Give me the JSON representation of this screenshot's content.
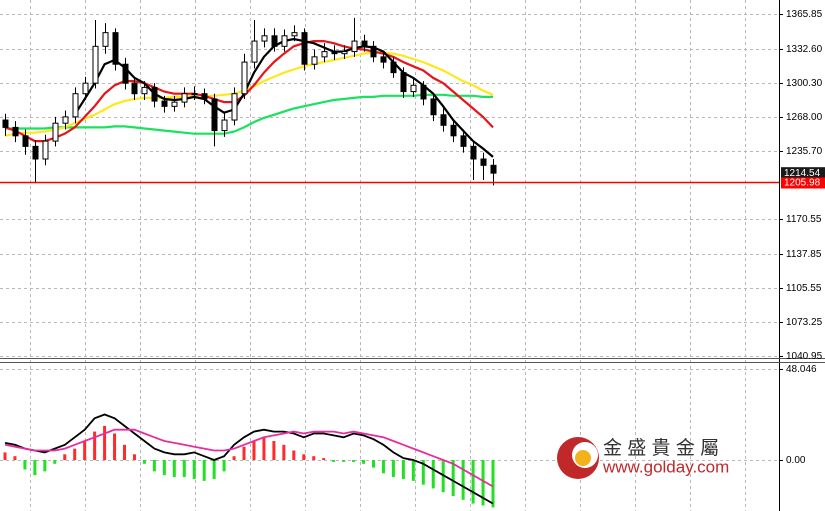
{
  "chart_data": [
    {
      "type": "candlestick",
      "open": [
        1265,
        1258,
        1250,
        1240,
        1228,
        1245,
        1262,
        1268,
        1290,
        1300,
        1335,
        1348,
        1318,
        1300,
        1290,
        1296,
        1283,
        1278,
        1282,
        1290,
        1290,
        1285,
        1255,
        1265,
        1290,
        1320,
        1340,
        1345,
        1335,
        1345,
        1348,
        1318,
        1325,
        1330,
        1328,
        1330,
        1340,
        1335,
        1325,
        1320,
        1310,
        1292,
        1298,
        1285,
        1270,
        1260,
        1250,
        1240,
        1228,
        1222
      ],
      "high": [
        1271,
        1264,
        1256,
        1246,
        1251,
        1268,
        1274,
        1296,
        1306,
        1360,
        1357,
        1352,
        1324,
        1306,
        1302,
        1300,
        1288,
        1288,
        1296,
        1297,
        1295,
        1290,
        1272,
        1296,
        1328,
        1360,
        1352,
        1352,
        1351,
        1355,
        1352,
        1332,
        1338,
        1336,
        1336,
        1362,
        1346,
        1340,
        1330,
        1325,
        1315,
        1304,
        1302,
        1290,
        1276,
        1265,
        1256,
        1245,
        1234,
        1228
      ],
      "low": [
        1250,
        1244,
        1232,
        1205,
        1222,
        1240,
        1256,
        1262,
        1284,
        1295,
        1328,
        1312,
        1294,
        1284,
        1284,
        1277,
        1272,
        1273,
        1277,
        1284,
        1280,
        1240,
        1249,
        1260,
        1285,
        1314,
        1334,
        1330,
        1330,
        1340,
        1312,
        1313,
        1320,
        1322,
        1323,
        1325,
        1330,
        1320,
        1314,
        1305,
        1286,
        1287,
        1279,
        1264,
        1254,
        1244,
        1234,
        1208,
        1208,
        1203
      ],
      "close": [
        1258,
        1250,
        1240,
        1228,
        1245,
        1262,
        1268,
        1290,
        1300,
        1335,
        1348,
        1318,
        1300,
        1290,
        1296,
        1283,
        1278,
        1282,
        1290,
        1290,
        1285,
        1255,
        1265,
        1290,
        1320,
        1340,
        1345,
        1335,
        1345,
        1348,
        1318,
        1325,
        1330,
        1328,
        1330,
        1340,
        1335,
        1325,
        1320,
        1310,
        1292,
        1298,
        1285,
        1270,
        1260,
        1250,
        1240,
        1228,
        1222,
        1214.54
      ],
      "up_color": "#ffffff",
      "down_color": "#000000",
      "series": [
        {
          "color": "#19e35e",
          "values": [
            1257,
            1257,
            1257,
            1257,
            1257,
            1258,
            1258,
            1258,
            1258,
            1258,
            1258,
            1259,
            1259,
            1258,
            1257,
            1256,
            1255,
            1254,
            1253,
            1252,
            1252,
            1252,
            1252,
            1254,
            1258,
            1263,
            1267,
            1270,
            1273,
            1276,
            1278,
            1280,
            1282,
            1284,
            1285,
            1286,
            1287,
            1287,
            1288,
            1288,
            1288,
            1288,
            1289,
            1289,
            1289,
            1288,
            1288,
            1288,
            1287,
            1287
          ]
        },
        {
          "color": "#ffe81a",
          "values": [
            1250,
            1252,
            1253,
            1253,
            1254,
            1256,
            1258,
            1262,
            1266,
            1270,
            1275,
            1280,
            1283,
            1285,
            1286,
            1286,
            1286,
            1287,
            1287,
            1288,
            1288,
            1288,
            1289,
            1290,
            1293,
            1297,
            1302,
            1306,
            1310,
            1313,
            1316,
            1318,
            1320,
            1322,
            1324,
            1326,
            1328,
            1329,
            1329,
            1328,
            1326,
            1323,
            1320,
            1316,
            1312,
            1307,
            1302,
            1298,
            1293,
            1289
          ]
        },
        {
          "color": "#e8141b",
          "values": [
            1258,
            1255,
            1250,
            1245,
            1245,
            1248,
            1252,
            1258,
            1268,
            1278,
            1290,
            1298,
            1302,
            1302,
            1300,
            1296,
            1292,
            1290,
            1290,
            1290,
            1288,
            1285,
            1282,
            1282,
            1288,
            1298,
            1310,
            1320,
            1328,
            1335,
            1338,
            1340,
            1340,
            1338,
            1335,
            1333,
            1332,
            1330,
            1328,
            1325,
            1320,
            1316,
            1312,
            1305,
            1300,
            1292,
            1284,
            1276,
            1268,
            1258
          ]
        },
        {
          "color": "#000000",
          "values": [
            null,
            null,
            null,
            null,
            null,
            null,
            null,
            1270,
            1285,
            1300,
            1318,
            1322,
            1315,
            1305,
            1300,
            1290,
            1285,
            1284,
            1285,
            1287,
            1285,
            1278,
            1272,
            1275,
            1290,
            1310,
            1325,
            1335,
            1340,
            1342,
            1340,
            1338,
            1334,
            1330,
            1330,
            1333,
            1335,
            1334,
            1330,
            1320,
            1310,
            1305,
            1298,
            1290,
            1278,
            1265,
            1255,
            1245,
            1238,
            1230
          ]
        }
      ],
      "ylim": [
        1039,
        1379
      ],
      "yticks": [
        1365.85,
        {
          "value": 1332.6,
          "label": "1332.60"
        },
        {
          "value": 1300.3,
          "label": "1300.30"
        },
        {
          "value": 1268,
          "label": "1268.00"
        },
        {
          "value": 1235.7,
          "label": "1235.70"
        },
        1170.55,
        1137.85,
        1105.55,
        1073.25,
        1040.95
      ],
      "grid": true,
      "bid": 1214.54,
      "level": 1205.98,
      "level_color": "#ff0000"
    },
    {
      "type": "macd",
      "histogram": [
        4,
        2,
        -5,
        -8,
        -6,
        -2,
        3,
        6,
        10,
        15,
        18,
        14,
        8,
        3,
        -2,
        -6,
        -8,
        -9,
        -9,
        -10,
        -11,
        -10,
        -6,
        2,
        7,
        10,
        12,
        10,
        8,
        5,
        3,
        2,
        1,
        -1,
        -1,
        -1,
        -2,
        -4,
        -7,
        -9,
        -10,
        -11,
        -13,
        -15,
        -17,
        -19,
        -21,
        -23,
        -24,
        -25
      ],
      "positive_color": "#ff2a2a",
      "negative_color": "#22e022",
      "series": [
        {
          "color": "#000000",
          "values": [
            9,
            8,
            6,
            5,
            4,
            6,
            8,
            12,
            16,
            22,
            24,
            22,
            18,
            14,
            10,
            6,
            4,
            3,
            3,
            4,
            2,
            0,
            2,
            8,
            12,
            15,
            16,
            15,
            15,
            14,
            12,
            14,
            14,
            13,
            12,
            14,
            13,
            11,
            8,
            4,
            1,
            0,
            -2,
            -5,
            -8,
            -11,
            -14,
            -17,
            -20,
            -23
          ]
        },
        {
          "color": "#e62ea0",
          "values": [
            8,
            7,
            6,
            5,
            5,
            5,
            6,
            8,
            10,
            12,
            14,
            16,
            16,
            16,
            14,
            12,
            10,
            9,
            8,
            7,
            6,
            5,
            5,
            6,
            8,
            10,
            12,
            13,
            14,
            15,
            14,
            15,
            15,
            15,
            14,
            15,
            14,
            13,
            12,
            10,
            8,
            6,
            4,
            2,
            0,
            -2,
            -5,
            -8,
            -11,
            -14
          ]
        }
      ],
      "ylim": [
        -26.9,
        51.7
      ],
      "yticks": [
        48.046,
        {
          "value": 0,
          "label": "0.00"
        }
      ],
      "grid": true
    }
  ],
  "watermark": {
    "title": "金 盛 貴 金 屬",
    "url": "www.golday.com"
  }
}
